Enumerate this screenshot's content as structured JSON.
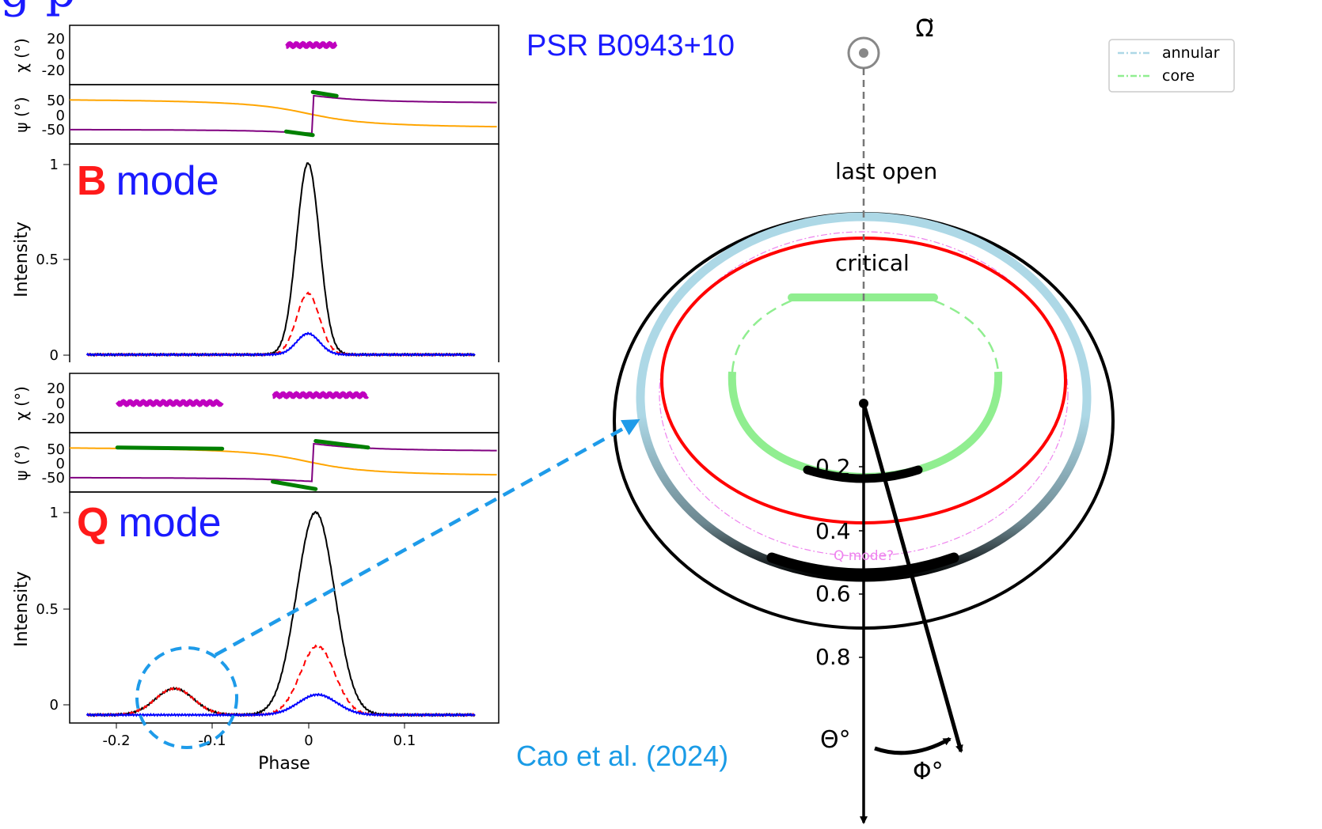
{
  "title_fragment": "g p",
  "source_name": "PSR B0943+10",
  "citation": "Cao et al. (2024)",
  "colors": {
    "mode_letter": "#ff1a1a",
    "mode_word": "#1a1aff",
    "source_name": "#1a1aff",
    "citation": "#1a9be6",
    "annular": "#add8e6",
    "core": "#90ee90",
    "critical": "#ff0000",
    "q_mode_ring": "#ee82ee",
    "pa_green": "#008000",
    "pa_purple": "#800080",
    "pa_orange": "#ffa500",
    "chi_magenta": "#bf00bf",
    "callout": "#1e9be9"
  },
  "polar_map": {
    "axis_symbol": "Ω⃗",
    "labels": {
      "last_open": "last open",
      "critical": "critical",
      "q_mode": "Q mode?",
      "theta": "Θ°",
      "phi": "Φ°"
    },
    "legend": [
      {
        "name": "annular",
        "color": "#add8e6"
      },
      {
        "name": "core",
        "color": "#90ee90"
      }
    ],
    "radial_ticks": [
      "0.2",
      "0.4",
      "0.6",
      "0.8"
    ]
  },
  "chart_data": [
    {
      "panel": "B",
      "mode_letter": "B",
      "mode_word": "mode",
      "type": "line",
      "xlim": [
        -0.25,
        0.2
      ],
      "xticks": [],
      "chi": {
        "ylabel": "χ (°)",
        "yticks": [
          "20",
          "0",
          "-20"
        ],
        "ylim": [
          -30,
          30
        ],
        "points": {
          "x_range": [
            -0.023,
            0.03
          ],
          "y": 10
        }
      },
      "psi": {
        "ylabel": "ψ (°)",
        "yticks": [
          "50",
          "0",
          "-50"
        ],
        "ylim": [
          -100,
          100
        ],
        "segments": [
          {
            "x": [
              -0.023,
              0.005
            ],
            "y": [
              -58,
              -70
            ]
          },
          {
            "x": [
              0.005,
              0.03
            ],
            "y": [
              75,
              62
            ]
          }
        ]
      },
      "intensity": {
        "ylabel": "Intensity",
        "yticks": [
          "0",
          "0.5",
          "1"
        ],
        "ylim": [
          -0.04,
          1.1
        ],
        "series": [
          {
            "color": "black",
            "style": "solid",
            "peaks": [
              {
                "center": 0.0,
                "height": 1.0,
                "width": 0.012
              }
            ]
          },
          {
            "color": "red",
            "style": "dashed",
            "peaks": [
              {
                "center": 0.0,
                "height": 0.32,
                "width": 0.012
              }
            ]
          },
          {
            "color": "blue",
            "style": "solid",
            "peaks": [
              {
                "center": 0.0,
                "height": 0.11,
                "width": 0.012
              }
            ]
          }
        ]
      }
    },
    {
      "panel": "Q",
      "mode_letter": "Q",
      "mode_word": "mode",
      "type": "line",
      "xlim": [
        -0.25,
        0.2
      ],
      "xticks": [
        "-0.2",
        "-0.1",
        "0",
        "0.1"
      ],
      "xlabel": "Phase",
      "chi": {
        "ylabel": "χ (°)",
        "yticks": [
          "20",
          "0",
          "-20"
        ],
        "ylim": [
          -30,
          30
        ],
        "points": [
          {
            "x_range": [
              -0.2,
              -0.09
            ],
            "y": 0
          },
          {
            "x_range": [
              -0.037,
              0.063
            ],
            "y": 8
          }
        ]
      },
      "psi": {
        "ylabel": "ψ (°)",
        "yticks": [
          "50",
          "0",
          "-50"
        ],
        "ylim": [
          -100,
          100
        ],
        "segments": [
          {
            "x": [
              -0.2,
              -0.09
            ],
            "y": [
              50,
              46
            ]
          },
          {
            "x": [
              -0.037,
              0.008
            ],
            "y": [
              -65,
              -90
            ]
          },
          {
            "x": [
              0.008,
              0.063
            ],
            "y": [
              72,
              50
            ]
          }
        ]
      },
      "intensity": {
        "ylabel": "Intensity",
        "yticks": [
          "0",
          "0.5",
          "1"
        ],
        "ylim": [
          -0.04,
          1.1
        ],
        "series": [
          {
            "color": "black",
            "style": "solid",
            "peaks": [
              {
                "center": -0.14,
                "height": 0.13,
                "width": 0.02
              },
              {
                "center": 0.008,
                "height": 1.0,
                "width": 0.02
              }
            ]
          },
          {
            "color": "red",
            "style": "dashed",
            "peaks": [
              {
                "center": -0.14,
                "height": 0.13,
                "width": 0.02
              },
              {
                "center": 0.01,
                "height": 0.34,
                "width": 0.018
              }
            ]
          },
          {
            "color": "blue",
            "style": "solid",
            "peaks": [
              {
                "center": 0.01,
                "height": 0.1,
                "width": 0.02
              }
            ]
          }
        ]
      }
    }
  ]
}
